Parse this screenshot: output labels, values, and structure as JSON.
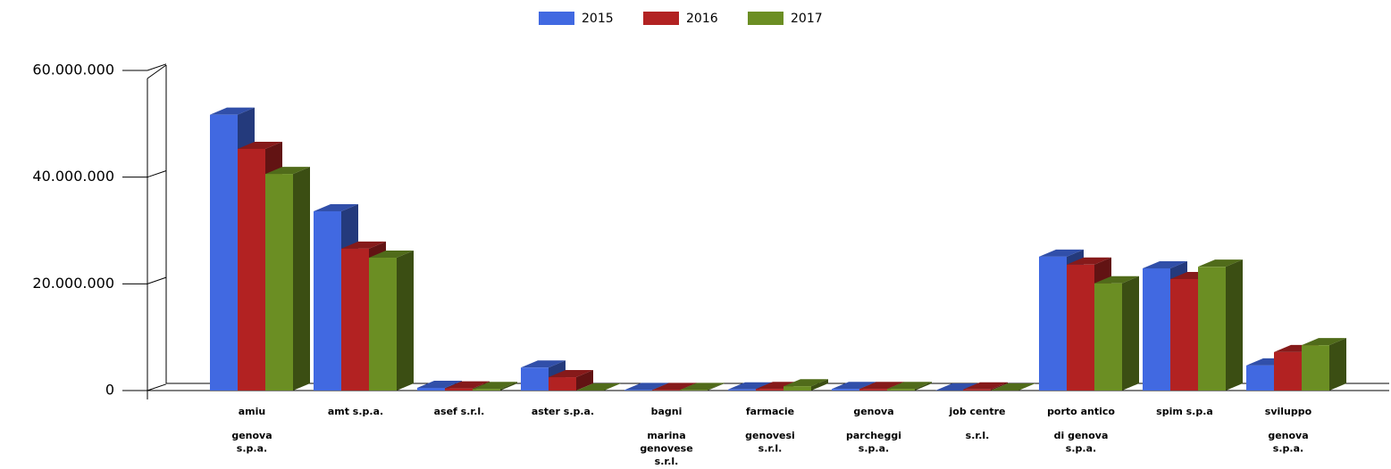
{
  "chart_data": {
    "type": "bar3d",
    "categories": [
      [
        "amiu",
        "genova",
        "s.p.a."
      ],
      [
        "amt s.p.a."
      ],
      [
        "asef s.r.l."
      ],
      [
        "aster s.p.a."
      ],
      [
        "bagni",
        "marina",
        "genovese",
        "s.r.l."
      ],
      [
        "farmacie",
        "genovesi",
        "s.r.l."
      ],
      [
        "genova",
        "parcheggi",
        "s.p.a."
      ],
      [
        "job centre",
        "s.r.l."
      ],
      [
        "porto antico",
        "di genova",
        "s.p.a."
      ],
      [
        "spim s.p.a"
      ],
      [
        "sviluppo",
        "genova",
        "s.p.a."
      ]
    ],
    "series": [
      {
        "name": "2015",
        "color": "#4169e1",
        "values": [
          51700000,
          33600000,
          500000,
          4300000,
          100000,
          200000,
          300000,
          0,
          25100000,
          22900000,
          4700000
        ]
      },
      {
        "name": "2016",
        "color": "#b22222",
        "values": [
          45300000,
          26600000,
          400000,
          2500000,
          100000,
          300000,
          300000,
          200000,
          23600000,
          20900000,
          7200000
        ]
      },
      {
        "name": "2017",
        "color": "#6b8e23",
        "values": [
          40600000,
          24900000,
          300000,
          0,
          100000,
          800000,
          300000,
          0,
          20100000,
          23200000,
          8500000
        ]
      }
    ],
    "ylim": [
      0,
      60000000
    ],
    "yticks": [
      0,
      {
        "value": 20000000,
        "label": "20.000.000"
      },
      {
        "value": 40000000,
        "label": "40.000.000"
      },
      {
        "value": 60000000,
        "label": "60.000.000"
      }
    ],
    "legend": "top"
  }
}
